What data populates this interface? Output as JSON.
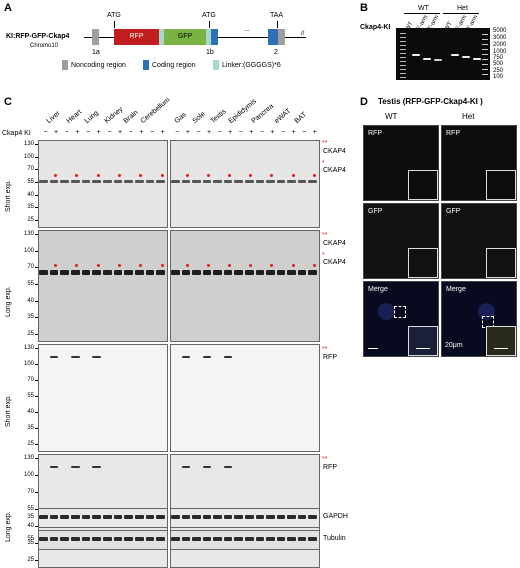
{
  "panelA": {
    "letter": "A",
    "construct_label": "KI:RFP-GFP-Ckap4",
    "chromo": "Chromo10",
    "atg1": "ATG",
    "atg2": "ATG",
    "taa": "TAA",
    "rfp": "RFP",
    "gfp": "GFP",
    "exon1a": "1a",
    "exon1b": "1b",
    "exon2": "2",
    "ellipsis": "...",
    "legend": {
      "noncoding": "Noncoding region",
      "coding": "Coding region",
      "linker": "Linker:(GGGGS)*6"
    },
    "colors": {
      "noncoding": "#9e9e9e",
      "coding": "#2f6fb3",
      "linker": "#a7d8d0",
      "rfp": "#c01d1d",
      "gfp": "#7bb342"
    }
  },
  "panelB": {
    "letter": "B",
    "title": "Ckap4-KI",
    "groups": [
      "WT",
      "Het"
    ],
    "lanes": [
      "WT",
      "5'-arm",
      "3'-arm",
      "WT",
      "5'-arm",
      "3'-arm"
    ],
    "ladder": [
      "5000",
      "3000",
      "2000",
      "1000",
      "750",
      "500",
      "250",
      "100"
    ]
  },
  "panelC": {
    "letter": "C",
    "tissues_left": [
      "Liver",
      "Heart",
      "Lung",
      "Kidney",
      "Brain",
      "Cerebellum"
    ],
    "tissues_right": [
      "Gas",
      "Sole",
      "Testis",
      "Epididymis",
      "Pancrea",
      "eWAT",
      "BAT"
    ],
    "genotype_label": "Ckap4 KI",
    "minus": "−",
    "plus": "+",
    "exposures": [
      "Short exp.",
      "Long exp.",
      "Short exp.",
      "Long exp."
    ],
    "mw_rows": [
      [
        "130",
        "100",
        "70",
        "55",
        "40",
        "35",
        "25"
      ],
      [
        "130",
        "100",
        "70",
        "55",
        "40",
        "35",
        "25"
      ],
      [
        "130",
        "100",
        "70",
        "55",
        "40",
        "35",
        "25"
      ],
      [
        "130",
        "100",
        "70",
        "55",
        "40",
        "35",
        "25"
      ]
    ],
    "labels": {
      "ckap4_ko": "CKAP4",
      "ckap4": "CKAP4",
      "rfp": "RFP",
      "gapdh": "GAPDH",
      "tubulin": "Tubulin",
      "double_star": "**",
      "single_star": "*"
    },
    "gapdh_mw": "35",
    "tubulin_mw": "55"
  },
  "panelD": {
    "letter": "D",
    "title": "Testis (RFP-GFP-Ckap4-KI )",
    "columns": [
      "WT",
      "Het"
    ],
    "rows": [
      "RFP",
      "GFP",
      "Merge"
    ],
    "scale": "20μm"
  }
}
